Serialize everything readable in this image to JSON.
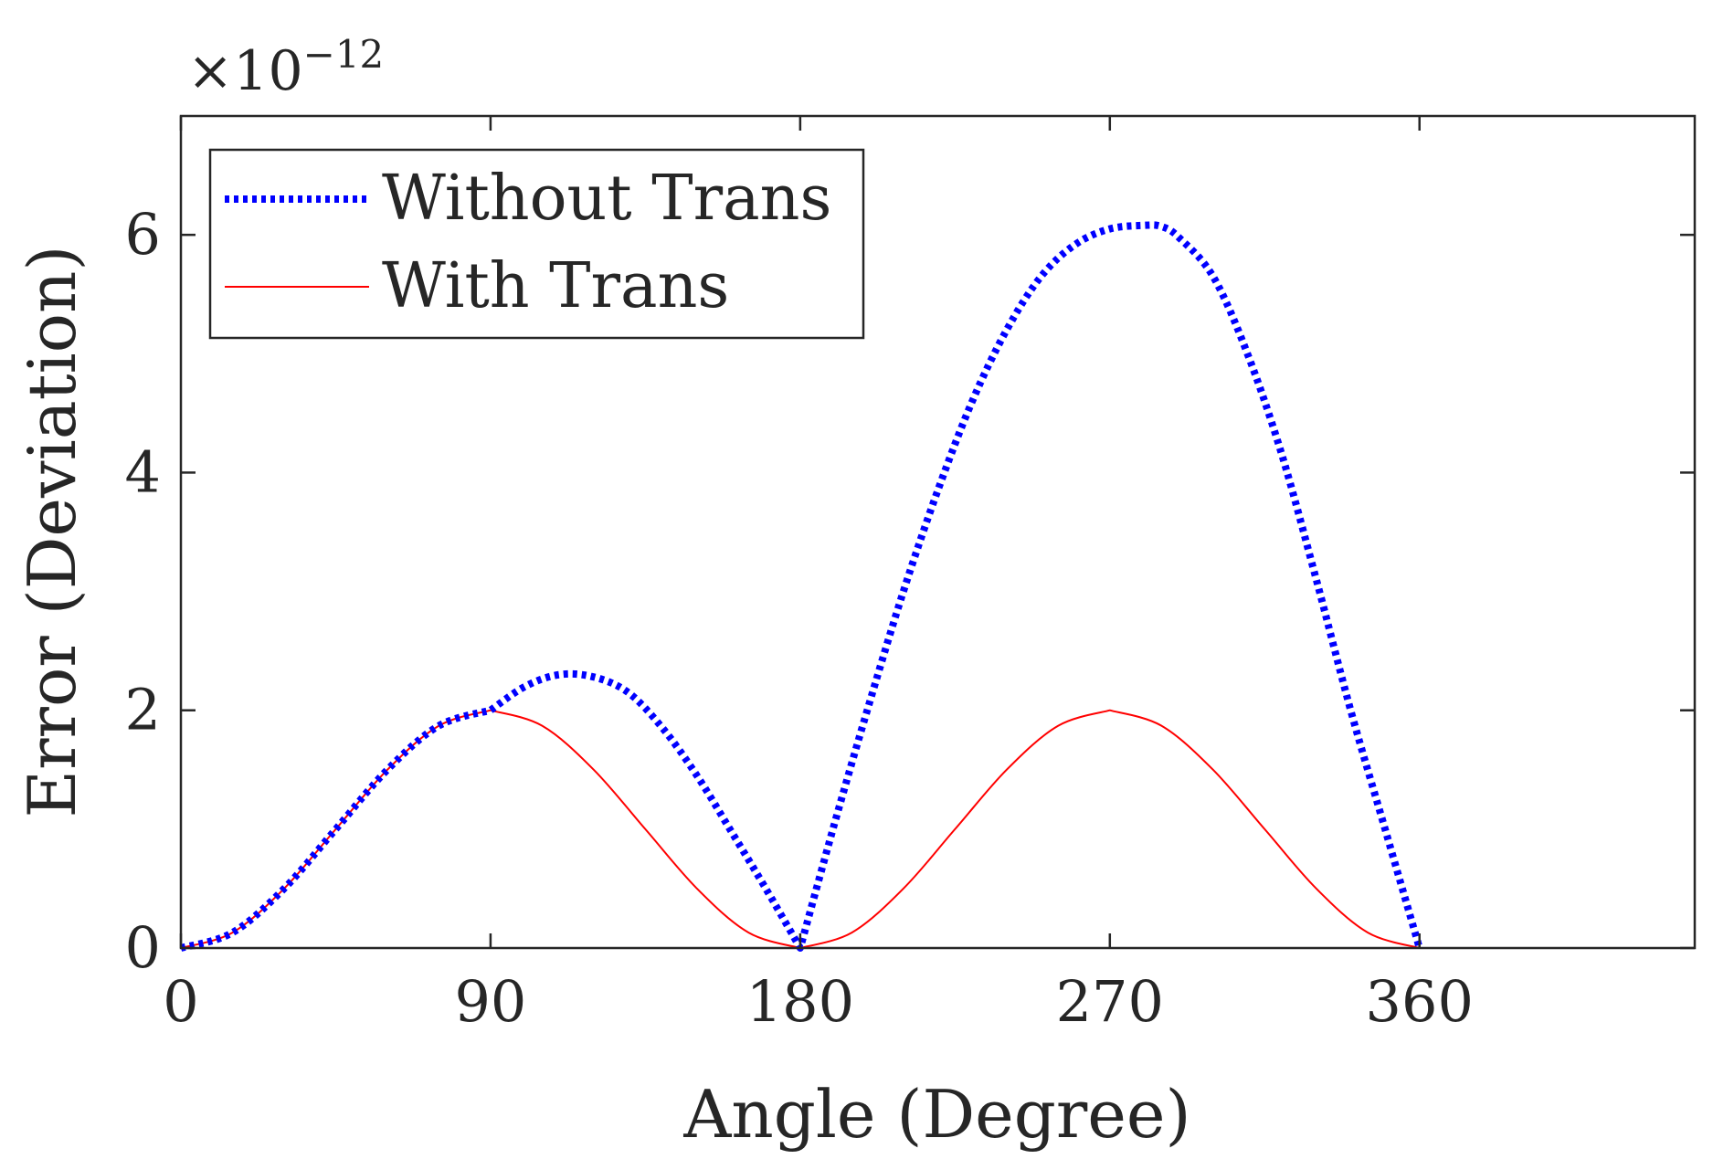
{
  "chart_data": {
    "type": "line",
    "title": "",
    "xlabel": "Angle (Degree)",
    "ylabel": "Error (Deviation)",
    "exponent_label": {
      "base": "×10",
      "power": "−12"
    },
    "xlim": [
      0,
      440
    ],
    "ylim": [
      0,
      7
    ],
    "xticks": [
      0,
      90,
      180,
      270,
      360
    ],
    "yticks": [
      0,
      2,
      4,
      6
    ],
    "xtick_labels": [
      "0",
      "90",
      "180",
      "270",
      "360"
    ],
    "ytick_labels": [
      "0",
      "2",
      "4",
      "6"
    ],
    "legend_position": "top-left",
    "series": [
      {
        "name": "Without Trans",
        "color": "#0000ff",
        "style": "dotted",
        "x": [
          0,
          15,
          30,
          45,
          60,
          75,
          90,
          100,
          110,
          120,
          130,
          140,
          150,
          160,
          170,
          180,
          190,
          200,
          210,
          220,
          230,
          240,
          250,
          260,
          270,
          280,
          285,
          290,
          300,
          310,
          320,
          330,
          340,
          350,
          360
        ],
        "values": [
          0,
          0.13,
          0.5,
          1.0,
          1.5,
          1.87,
          2.0,
          2.2,
          2.3,
          2.28,
          2.15,
          1.85,
          1.45,
          0.98,
          0.5,
          0,
          1.05,
          2.05,
          3.0,
          3.85,
          4.6,
          5.2,
          5.65,
          5.92,
          6.05,
          6.08,
          6.07,
          5.98,
          5.65,
          5.0,
          4.15,
          3.1,
          2.0,
          1.0,
          0
        ]
      },
      {
        "name": "With Trans",
        "color": "#ff0000",
        "style": "solid",
        "x": [
          0,
          15,
          30,
          45,
          60,
          75,
          90,
          105,
          120,
          135,
          150,
          165,
          180,
          195,
          210,
          225,
          240,
          255,
          270,
          285,
          300,
          315,
          330,
          345,
          360
        ],
        "values": [
          0,
          0.13,
          0.5,
          1.0,
          1.5,
          1.87,
          2.0,
          1.87,
          1.5,
          1.0,
          0.5,
          0.13,
          0,
          0.13,
          0.5,
          1.0,
          1.5,
          1.87,
          2.0,
          1.87,
          1.5,
          1.0,
          0.5,
          0.13,
          0
        ]
      }
    ]
  }
}
